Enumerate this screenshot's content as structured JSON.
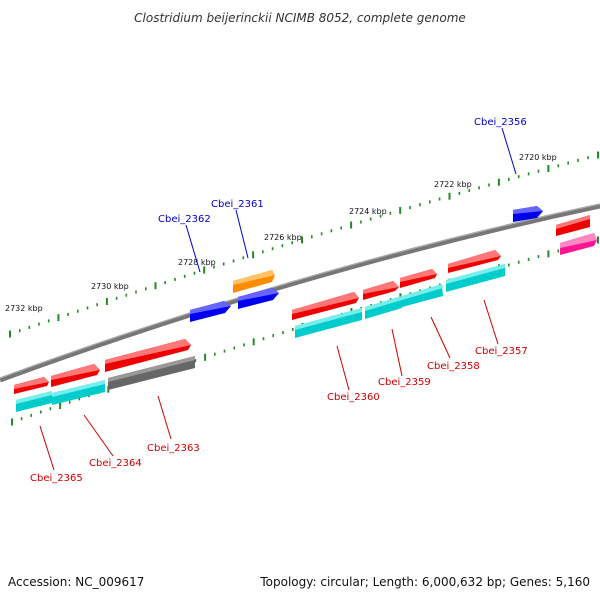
{
  "title": "Clostridium beijerinckii NCIMB 8052, complete genome",
  "accession": "Accession: NC_009617",
  "summary": "Topology: circular; Length: 6,000,632 bp; Genes: 5,160",
  "kbp_labels": [
    "2720 kbp",
    "2722 kbp",
    "2724 kbp",
    "2726 kbp",
    "2728 kbp",
    "2730 kbp",
    "2732 kbp"
  ],
  "genes_top_strand": [
    "Cbei_2356",
    "Cbei_2361",
    "Cbei_2362"
  ],
  "genes_bottom_strand": [
    "Cbei_2357",
    "Cbei_2358",
    "Cbei_2359",
    "Cbei_2360",
    "Cbei_2363",
    "Cbei_2364",
    "Cbei_2365"
  ],
  "colors": {
    "forward_gene": "#0000ee",
    "reverse_gene": "#ee0000",
    "top_label": "#0000cc",
    "bottom_label": "#cc0000",
    "orange_feature": "#ff8c00",
    "cyan_feature": "#00cccc",
    "gray_feature": "#666666",
    "pink_feature": "#ff1493",
    "backbone": "#777777",
    "tick": "#228b22"
  }
}
